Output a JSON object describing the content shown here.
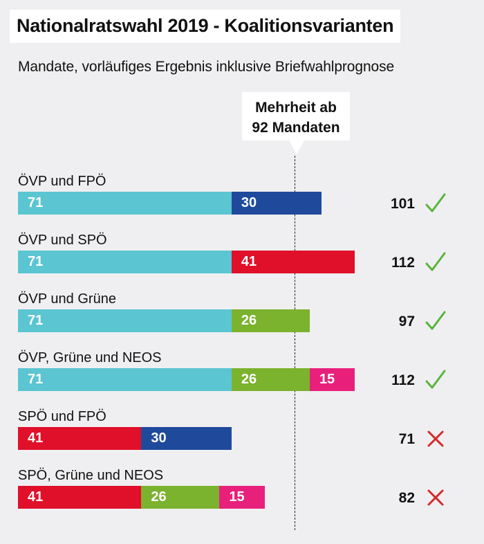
{
  "title": "Nationalratswahl 2019 - Koalitionsvarianten",
  "subtitle": "Mandate, vorläufiges Ergebnis inklusive Briefwahlprognose",
  "majority": {
    "label_line1": "Mehrheit ab",
    "label_line2": "92 Mandaten",
    "threshold": 92
  },
  "colors": {
    "ÖVP": "#5bc5d2",
    "FPÖ": "#1f4a9c",
    "SPÖ": "#e00f2a",
    "Grüne": "#7bb22e",
    "NEOS": "#e8207b",
    "check": "#5ab43c",
    "cross": "#d42a2a"
  },
  "chart_data": {
    "type": "bar",
    "stacked": true,
    "orientation": "horizontal",
    "xlim": [
      0,
      120
    ],
    "categories": [
      "ÖVP und FPÖ",
      "ÖVP und SPÖ",
      "ÖVP und Grüne",
      "ÖVP, Grüne und NEOS",
      "SPÖ und FPÖ",
      "SPÖ, Grüne und NEOS"
    ],
    "rows": [
      {
        "label": "ÖVP und FPÖ",
        "segments": [
          {
            "party": "ÖVP",
            "value": 71
          },
          {
            "party": "FPÖ",
            "value": 30
          }
        ],
        "total": 101,
        "majority": true
      },
      {
        "label": "ÖVP und SPÖ",
        "segments": [
          {
            "party": "ÖVP",
            "value": 71
          },
          {
            "party": "SPÖ",
            "value": 41
          }
        ],
        "total": 112,
        "majority": true
      },
      {
        "label": "ÖVP und Grüne",
        "segments": [
          {
            "party": "ÖVP",
            "value": 71
          },
          {
            "party": "Grüne",
            "value": 26
          }
        ],
        "total": 97,
        "majority": true
      },
      {
        "label": "ÖVP, Grüne und NEOS",
        "segments": [
          {
            "party": "ÖVP",
            "value": 71
          },
          {
            "party": "Grüne",
            "value": 26
          },
          {
            "party": "NEOS",
            "value": 15
          }
        ],
        "total": 112,
        "majority": true
      },
      {
        "label": "SPÖ und FPÖ",
        "segments": [
          {
            "party": "SPÖ",
            "value": 41
          },
          {
            "party": "FPÖ",
            "value": 30
          }
        ],
        "total": 71,
        "majority": false
      },
      {
        "label": "SPÖ, Grüne und NEOS",
        "segments": [
          {
            "party": "SPÖ",
            "value": 41
          },
          {
            "party": "Grüne",
            "value": 26
          },
          {
            "party": "NEOS",
            "value": 15
          }
        ],
        "total": 82,
        "majority": false
      }
    ]
  }
}
